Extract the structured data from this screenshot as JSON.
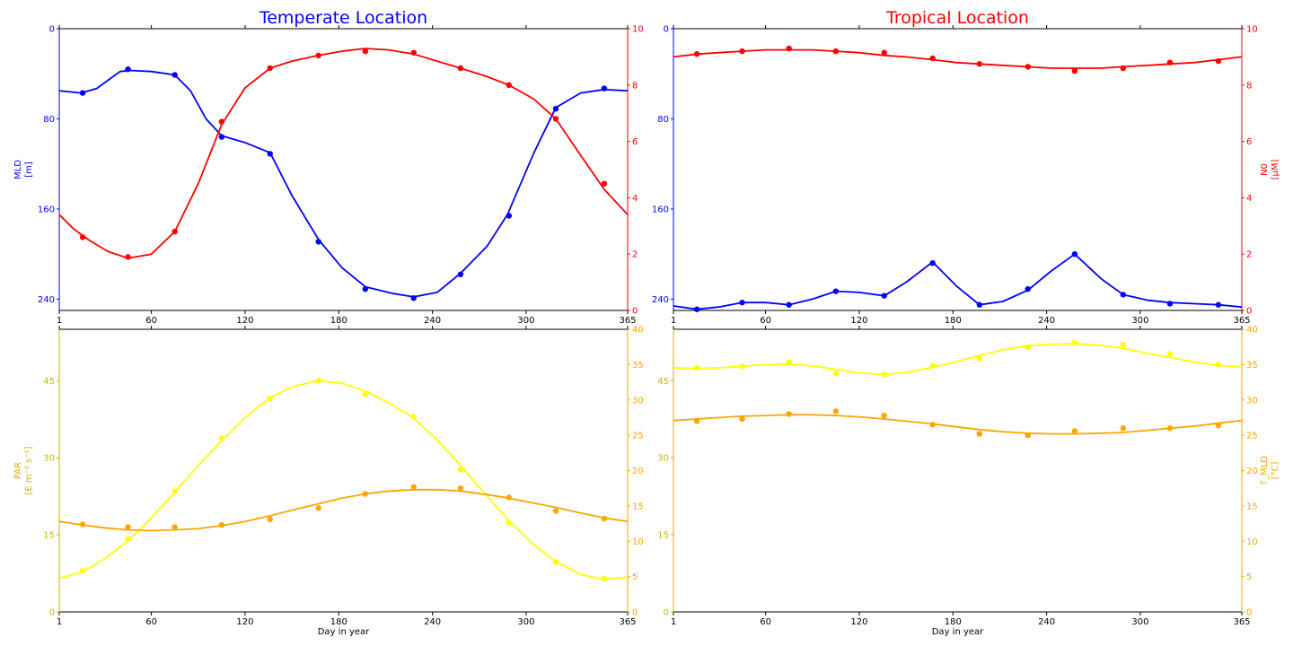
{
  "colors": {
    "blue": "#0000ff",
    "red": "#ff0000",
    "yellow": "#ffff00",
    "orange": "#ffa500",
    "axis_yellow": "#c8b400"
  },
  "chart_data": [
    {
      "id": "temperate-top",
      "type": "line",
      "title": "Temperate Location",
      "title_color": "#0000ff",
      "xlim": [
        1,
        365
      ],
      "x_ticks": [
        1,
        60,
        120,
        180,
        240,
        300,
        365
      ],
      "xlabel": "",
      "left_axis": {
        "label": [
          "MLD",
          "[m]"
        ],
        "color": "#0000ff",
        "ylim": [
          0,
          250
        ],
        "inverted": true,
        "ticks": [
          0,
          80,
          160,
          240
        ]
      },
      "right_axis": {
        "label": [],
        "color": "#ff0000",
        "ylim": [
          0,
          10
        ],
        "inverted": false,
        "ticks": [
          0,
          2,
          4,
          6,
          8,
          10
        ]
      },
      "series": [
        {
          "axis": "left",
          "color": "#0000ff",
          "curve_x": [
            1,
            15,
            25,
            40,
            46,
            60,
            75,
            85,
            95,
            105,
            120,
            136,
            150,
            167,
            182,
            197,
            215,
            228,
            243,
            258,
            275,
            288,
            305,
            319,
            335,
            350,
            365
          ],
          "curve_y": [
            55,
            57,
            53,
            38,
            37,
            38,
            41,
            55,
            80,
            95,
            101,
            110,
            148,
            187,
            212,
            229,
            235,
            238,
            234,
            217,
            193,
            165,
            110,
            70,
            57,
            54,
            55
          ],
          "points_x": [
            16,
            45,
            75,
            105,
            136,
            167,
            197,
            228,
            258,
            289,
            319,
            350
          ],
          "points_y": [
            57,
            36,
            41,
            96,
            111,
            189,
            231,
            239,
            218,
            166,
            71,
            53
          ]
        },
        {
          "axis": "right",
          "color": "#ff0000",
          "curve_x": [
            1,
            10,
            20,
            32,
            45,
            60,
            75,
            90,
            105,
            120,
            136,
            150,
            167,
            182,
            197,
            212,
            228,
            243,
            258,
            275,
            289,
            305,
            319,
            335,
            350,
            365
          ],
          "curve_y": [
            3.4,
            2.9,
            2.5,
            2.1,
            1.85,
            2.0,
            2.8,
            4.5,
            6.6,
            7.9,
            8.6,
            8.85,
            9.05,
            9.2,
            9.3,
            9.25,
            9.1,
            8.85,
            8.6,
            8.3,
            8.0,
            7.5,
            6.8,
            5.5,
            4.3,
            3.4
          ],
          "points_x": [
            16,
            45,
            75,
            105,
            136,
            167,
            197,
            228,
            258,
            289,
            319,
            350
          ],
          "points_y": [
            2.6,
            1.9,
            2.8,
            6.7,
            8.6,
            9.05,
            9.2,
            9.15,
            8.6,
            8.0,
            6.8,
            4.5
          ]
        }
      ]
    },
    {
      "id": "tropical-top",
      "type": "line",
      "title": "Tropical Location",
      "title_color": "#ff0000",
      "xlim": [
        1,
        365
      ],
      "x_ticks": [
        1,
        60,
        120,
        180,
        240,
        300,
        365
      ],
      "xlabel": "",
      "left_axis": {
        "label": [],
        "color": "#0000ff",
        "ylim": [
          0,
          250
        ],
        "inverted": true,
        "ticks": [
          0,
          80,
          160,
          240
        ]
      },
      "right_axis": {
        "label": [
          "N0",
          "[µM]"
        ],
        "color": "#ff0000",
        "ylim": [
          0,
          10
        ],
        "inverted": false,
        "ticks": [
          0,
          2,
          4,
          6,
          8,
          10
        ]
      },
      "series": [
        {
          "axis": "left",
          "color": "#0000ff",
          "curve_x": [
            1,
            16,
            30,
            45,
            60,
            75,
            90,
            105,
            120,
            136,
            150,
            167,
            182,
            197,
            212,
            228,
            243,
            258,
            275,
            289,
            305,
            319,
            335,
            350,
            365
          ],
          "curve_y": [
            246,
            249,
            247,
            243,
            243,
            245,
            240,
            233,
            234,
            237,
            225,
            207,
            228,
            245,
            242,
            232,
            215,
            200,
            222,
            236,
            241,
            243,
            244,
            245,
            247
          ],
          "points_x": [
            16,
            45,
            75,
            105,
            136,
            167,
            197,
            228,
            258,
            289,
            319,
            350
          ],
          "points_y": [
            249,
            243,
            245,
            233,
            237,
            208,
            245,
            231,
            200,
            236,
            244,
            245
          ]
        },
        {
          "axis": "right",
          "color": "#ff0000",
          "curve_x": [
            1,
            16,
            30,
            45,
            60,
            75,
            90,
            105,
            120,
            136,
            150,
            167,
            182,
            197,
            212,
            228,
            243,
            258,
            275,
            289,
            305,
            319,
            335,
            350,
            365
          ],
          "curve_y": [
            9.0,
            9.1,
            9.15,
            9.2,
            9.25,
            9.25,
            9.25,
            9.2,
            9.15,
            9.05,
            9.0,
            8.9,
            8.8,
            8.75,
            8.7,
            8.65,
            8.6,
            8.6,
            8.6,
            8.65,
            8.7,
            8.75,
            8.8,
            8.9,
            9.0
          ],
          "points_x": [
            16,
            45,
            75,
            105,
            136,
            167,
            197,
            228,
            258,
            289,
            319,
            350
          ],
          "points_y": [
            9.1,
            9.2,
            9.3,
            9.2,
            9.15,
            8.95,
            8.75,
            8.65,
            8.5,
            8.6,
            8.8,
            8.85
          ]
        }
      ]
    },
    {
      "id": "temperate-bottom",
      "type": "line",
      "title": "",
      "xlim": [
        1,
        365
      ],
      "x_ticks": [
        1,
        60,
        120,
        180,
        240,
        300,
        365
      ],
      "xlabel": "Day in year",
      "left_axis": {
        "label": [
          "PAR",
          "[E m⁻² s⁻¹]"
        ],
        "color": "#c8b400",
        "ylim": [
          0,
          55
        ],
        "inverted": false,
        "ticks": [
          0,
          15,
          30,
          45
        ]
      },
      "right_axis": {
        "label": [],
        "color": "#ffa500",
        "ylim": [
          0,
          40
        ],
        "inverted": false,
        "ticks": [
          0,
          5,
          10,
          15,
          20,
          25,
          30,
          35,
          40
        ]
      },
      "series": [
        {
          "axis": "left",
          "color": "#ffff00",
          "curve_x": [
            1,
            16,
            30,
            45,
            60,
            75,
            90,
            105,
            120,
            136,
            150,
            167,
            182,
            197,
            212,
            228,
            243,
            258,
            275,
            289,
            305,
            319,
            335,
            350,
            365
          ],
          "curve_y": [
            6.5,
            7.8,
            10.3,
            13.8,
            18.3,
            23.3,
            28.5,
            33.3,
            37.8,
            41.7,
            43.8,
            45.0,
            44.5,
            43.0,
            40.7,
            37.7,
            33.5,
            28.5,
            22.5,
            17.8,
            13.0,
            9.8,
            7.3,
            6.3,
            6.8
          ],
          "points_x": [
            16,
            45,
            75,
            105,
            136,
            167,
            197,
            228,
            258,
            289,
            319,
            350
          ],
          "points_y": [
            8.0,
            14.2,
            23.5,
            33.8,
            41.5,
            45.0,
            42.3,
            38.0,
            27.7,
            17.3,
            9.7,
            6.5
          ]
        },
        {
          "axis": "right",
          "color": "#ffa500",
          "curve_x": [
            1,
            16,
            30,
            45,
            60,
            75,
            90,
            105,
            120,
            136,
            150,
            167,
            182,
            197,
            212,
            228,
            243,
            258,
            275,
            289,
            305,
            319,
            335,
            350,
            365
          ],
          "curve_y": [
            12.8,
            12.3,
            11.9,
            11.6,
            11.5,
            11.6,
            11.8,
            12.2,
            12.8,
            13.6,
            14.4,
            15.3,
            16.1,
            16.7,
            17.1,
            17.3,
            17.3,
            17.1,
            16.6,
            16.1,
            15.4,
            14.8,
            14.0,
            13.3,
            12.8
          ],
          "points_x": [
            16,
            45,
            75,
            105,
            136,
            167,
            197,
            228,
            258,
            289,
            319,
            350
          ],
          "points_y": [
            12.4,
            12.0,
            12.0,
            12.3,
            13.1,
            14.7,
            16.7,
            17.7,
            17.5,
            16.2,
            14.3,
            13.2
          ]
        }
      ]
    },
    {
      "id": "tropical-bottom",
      "type": "line",
      "title": "",
      "xlim": [
        1,
        365
      ],
      "x_ticks": [
        1,
        60,
        120,
        180,
        240,
        300,
        365
      ],
      "xlabel": "Day in year",
      "left_axis": {
        "label": [],
        "color": "#c8b400",
        "ylim": [
          0,
          55
        ],
        "inverted": false,
        "ticks": [
          0,
          15,
          30,
          45
        ]
      },
      "right_axis": {
        "label": [
          "T_MLD",
          "[°C]"
        ],
        "color": "#ffa500",
        "ylim": [
          0,
          40
        ],
        "inverted": false,
        "ticks": [
          0,
          5,
          10,
          15,
          20,
          25,
          30,
          35,
          40
        ]
      },
      "series": [
        {
          "axis": "left",
          "color": "#ffff00",
          "curve_x": [
            1,
            16,
            30,
            45,
            60,
            75,
            90,
            105,
            120,
            136,
            150,
            167,
            182,
            197,
            212,
            228,
            243,
            258,
            275,
            289,
            305,
            319,
            335,
            350,
            365
          ],
          "curve_y": [
            47.5,
            47.4,
            47.5,
            47.8,
            48.1,
            48.2,
            47.9,
            47.2,
            46.5,
            46.2,
            46.6,
            47.6,
            48.7,
            49.9,
            51.0,
            51.8,
            52.1,
            52.2,
            51.9,
            51.3,
            50.3,
            49.5,
            48.6,
            48.0,
            47.6
          ],
          "points_x": [
            16,
            45,
            75,
            105,
            136,
            167,
            197,
            228,
            258,
            289,
            319,
            350
          ],
          "points_y": [
            47.5,
            47.8,
            48.6,
            46.4,
            46.2,
            47.9,
            49.3,
            51.5,
            52.4,
            52.0,
            50.2,
            48.1
          ]
        },
        {
          "axis": "right",
          "color": "#ffa500",
          "curve_x": [
            1,
            16,
            30,
            45,
            60,
            75,
            90,
            105,
            120,
            136,
            150,
            167,
            182,
            197,
            212,
            228,
            243,
            258,
            275,
            289,
            305,
            319,
            335,
            350,
            365
          ],
          "curve_y": [
            27.1,
            27.3,
            27.5,
            27.7,
            27.8,
            27.9,
            27.9,
            27.8,
            27.6,
            27.3,
            27.0,
            26.6,
            26.2,
            25.8,
            25.5,
            25.3,
            25.2,
            25.2,
            25.3,
            25.4,
            25.7,
            26.0,
            26.3,
            26.7,
            27.1
          ],
          "points_x": [
            16,
            45,
            75,
            105,
            136,
            167,
            197,
            228,
            258,
            289,
            319,
            350
          ],
          "points_y": [
            27.0,
            27.3,
            28.0,
            28.4,
            27.8,
            26.5,
            25.2,
            25.0,
            25.6,
            26.0,
            26.0,
            26.4
          ]
        }
      ]
    }
  ]
}
